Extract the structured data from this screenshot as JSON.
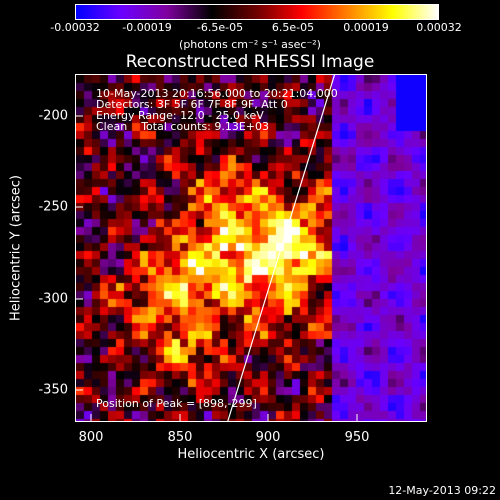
{
  "colorbar": {
    "ticks": [
      "-0.00032",
      "-0.00019",
      "-6.5e-05",
      "6.5e-05",
      "0.00019",
      "0.00032"
    ],
    "units": "(photons cm⁻² s⁻¹ asec⁻²)",
    "colors": [
      "#0000ff",
      "#6a00ff",
      "#8000a0",
      "#000000",
      "#700000",
      "#ff0000",
      "#ff8000",
      "#ffff00",
      "#ffffff"
    ]
  },
  "title": "Reconstructed RHESSI Image",
  "legend": {
    "line1": "10-May-2013 20:16:56.000 to 20:21:04.000",
    "line2": "Detectors: 3F 5F 6F 7F 8F 9F, Att 0",
    "line3": "Energy Range: 12.0 - 25.0 keV",
    "line4": "Clean    Total counts: 9.13E+03"
  },
  "peak": "Position of Peak = [898,-299]",
  "axes": {
    "xlabel": "Heliocentric X (arcsec)",
    "ylabel": "Heliocentric Y (arcsec)",
    "xticks": [
      "800",
      "850",
      "900",
      "950"
    ],
    "yticks": [
      "-200",
      "-250",
      "-300",
      "-350"
    ],
    "xrange": [
      785,
      985
    ],
    "yrange": [
      -372,
      -173
    ]
  },
  "timestamp": "12-May-2013 09:22"
}
